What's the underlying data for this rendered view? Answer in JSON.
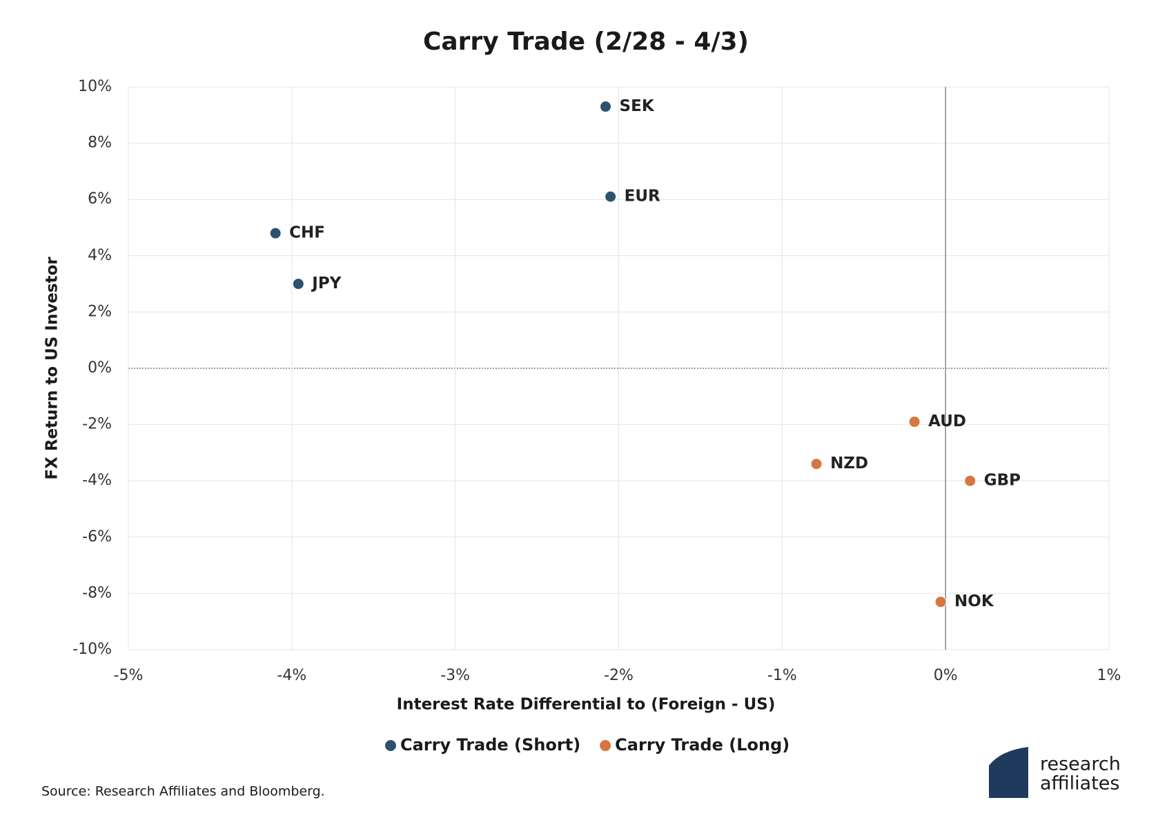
{
  "chart_data": {
    "type": "scatter",
    "title": "Carry Trade (2/28 - 4/3)",
    "x_label": "Interest Rate Differential to (Foreign - US)",
    "y_label": "FX Return to US Investor",
    "series": [
      {
        "name": "Carry Trade (Short)",
        "color": "#2d5270",
        "labels": [
          "SEK",
          "EUR",
          "CHF",
          "JPY"
        ],
        "x": [
          -2.08,
          -2.05,
          -4.1,
          -3.96
        ],
        "values": [
          9.3,
          6.1,
          4.8,
          3.0
        ]
      },
      {
        "name": "Carry Trade (Long)",
        "color": "#d6773f",
        "labels": [
          "AUD",
          "NZD",
          "GBP",
          "NOK"
        ],
        "x": [
          -0.19,
          -0.79,
          0.15,
          -0.03
        ],
        "values": [
          -1.9,
          -3.4,
          -4.0,
          -8.3
        ]
      }
    ],
    "xlim": [
      -5,
      1
    ],
    "xticks": [
      {
        "value": -5,
        "label": "-5%"
      },
      {
        "value": -4,
        "label": "-4%"
      },
      {
        "value": -3,
        "label": "-3%"
      },
      {
        "value": -2,
        "label": "-2%"
      },
      {
        "value": -1,
        "label": "-1%"
      },
      {
        "value": 0,
        "label": "0%"
      },
      {
        "value": 1,
        "label": "1%"
      }
    ],
    "ylim": [
      -10,
      10
    ],
    "yticks": [
      {
        "value": 10,
        "label": "10%"
      },
      {
        "value": 8,
        "label": "8%"
      },
      {
        "value": 6,
        "label": "6%"
      },
      {
        "value": 4,
        "label": "4%"
      },
      {
        "value": 2,
        "label": "2%"
      },
      {
        "value": 0,
        "label": "0%"
      },
      {
        "value": -2,
        "label": "-2%"
      },
      {
        "value": -4,
        "label": "-4%"
      },
      {
        "value": -6,
        "label": "-6%"
      },
      {
        "value": -8,
        "label": "-8%"
      },
      {
        "value": -10,
        "label": "-10%"
      }
    ],
    "grid": true,
    "legend": "bottom",
    "source": "Source: Research Affiliates and Bloomberg.",
    "logo": [
      "research",
      "affiliates"
    ]
  }
}
